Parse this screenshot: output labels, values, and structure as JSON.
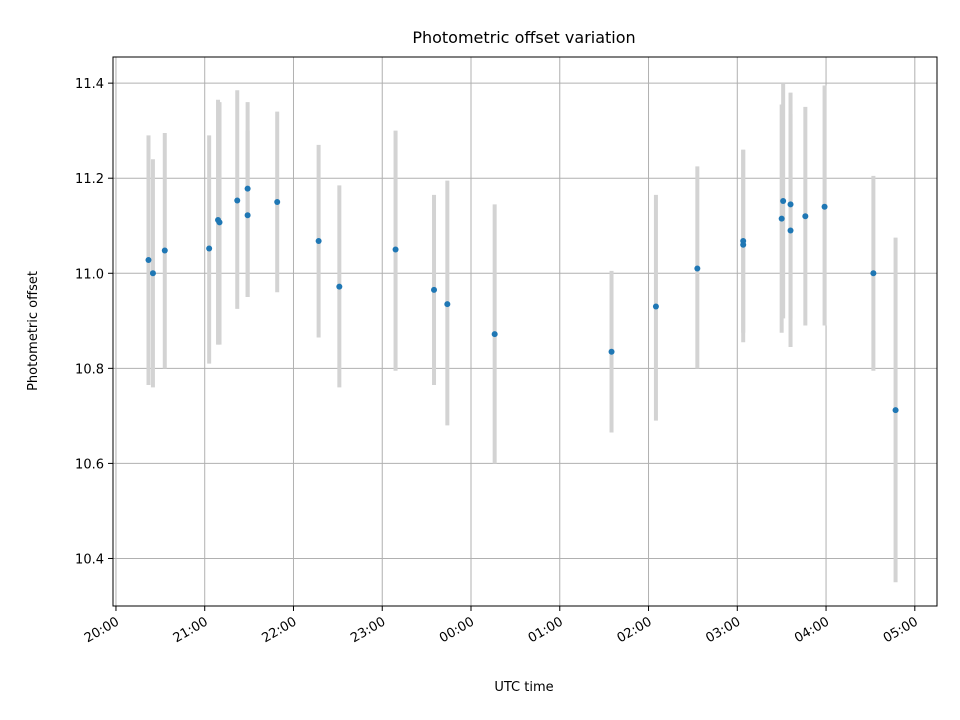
{
  "chart_data": {
    "type": "scatter",
    "title": "Photometric offset variation",
    "xlabel": "UTC time",
    "ylabel": "Photometric offset",
    "xlim": [
      "2000-01-01T19:58",
      "2000-01-02T05:15"
    ],
    "ylim": [
      10.3,
      11.455
    ],
    "x_ticks": [
      "20:00",
      "21:00",
      "22:00",
      "23:00",
      "00:00",
      "01:00",
      "02:00",
      "03:00",
      "04:00",
      "05:00"
    ],
    "y_ticks": [
      10.4,
      10.6,
      10.8,
      11.0,
      11.2,
      11.4
    ],
    "grid": true,
    "point_color": "#1f77b4",
    "errorbar_color": "#d3d3d3",
    "points": [
      {
        "x": "2000-01-01T20:22",
        "y": 11.028,
        "lo": 10.765,
        "hi": 11.29
      },
      {
        "x": "2000-01-01T20:25",
        "y": 11.0,
        "lo": 10.76,
        "hi": 11.24
      },
      {
        "x": "2000-01-01T20:33",
        "y": 11.048,
        "lo": 10.8,
        "hi": 11.295
      },
      {
        "x": "2000-01-01T21:03",
        "y": 11.052,
        "lo": 10.81,
        "hi": 11.29
      },
      {
        "x": "2000-01-01T21:09",
        "y": 11.112,
        "lo": 10.85,
        "hi": 11.365
      },
      {
        "x": "2000-01-01T21:10",
        "y": 11.107,
        "lo": 10.85,
        "hi": 11.36
      },
      {
        "x": "2000-01-01T21:22",
        "y": 11.153,
        "lo": 10.925,
        "hi": 11.385
      },
      {
        "x": "2000-01-01T21:29",
        "y": 11.178,
        "lo": 10.95,
        "hi": 11.36
      },
      {
        "x": "2000-01-01T21:29",
        "y": 11.122,
        "lo": 10.95,
        "hi": 11.3
      },
      {
        "x": "2000-01-01T21:49",
        "y": 11.15,
        "lo": 10.96,
        "hi": 11.34
      },
      {
        "x": "2000-01-01T22:17",
        "y": 11.068,
        "lo": 10.865,
        "hi": 11.27
      },
      {
        "x": "2000-01-01T22:31",
        "y": 10.972,
        "lo": 10.76,
        "hi": 11.185
      },
      {
        "x": "2000-01-01T23:09",
        "y": 11.05,
        "lo": 10.795,
        "hi": 11.3
      },
      {
        "x": "2000-01-01T23:35",
        "y": 10.965,
        "lo": 10.765,
        "hi": 11.165
      },
      {
        "x": "2000-01-01T23:44",
        "y": 10.935,
        "lo": 10.68,
        "hi": 11.195
      },
      {
        "x": "2000-01-02T00:16",
        "y": 10.872,
        "lo": 10.6,
        "hi": 11.145
      },
      {
        "x": "2000-01-02T01:35",
        "y": 10.835,
        "lo": 10.665,
        "hi": 11.005
      },
      {
        "x": "2000-01-02T02:05",
        "y": 10.93,
        "lo": 10.69,
        "hi": 11.165
      },
      {
        "x": "2000-01-02T02:33",
        "y": 11.01,
        "lo": 10.8,
        "hi": 11.225
      },
      {
        "x": "2000-01-02T03:04",
        "y": 11.068,
        "lo": 10.875,
        "hi": 11.26
      },
      {
        "x": "2000-01-02T03:04",
        "y": 11.06,
        "lo": 10.855,
        "hi": 11.26
      },
      {
        "x": "2000-01-02T03:30",
        "y": 11.115,
        "lo": 10.875,
        "hi": 11.355
      },
      {
        "x": "2000-01-02T03:31",
        "y": 11.152,
        "lo": 10.905,
        "hi": 11.4
      },
      {
        "x": "2000-01-02T03:36",
        "y": 11.145,
        "lo": 10.905,
        "hi": 11.38
      },
      {
        "x": "2000-01-02T03:36",
        "y": 11.09,
        "lo": 10.845,
        "hi": 11.335
      },
      {
        "x": "2000-01-02T03:46",
        "y": 11.12,
        "lo": 10.89,
        "hi": 11.35
      },
      {
        "x": "2000-01-02T03:59",
        "y": 11.14,
        "lo": 10.89,
        "hi": 11.395
      },
      {
        "x": "2000-01-02T04:32",
        "y": 11.0,
        "lo": 10.795,
        "hi": 11.205
      },
      {
        "x": "2000-01-02T04:47",
        "y": 10.712,
        "lo": 10.35,
        "hi": 11.075
      }
    ]
  }
}
